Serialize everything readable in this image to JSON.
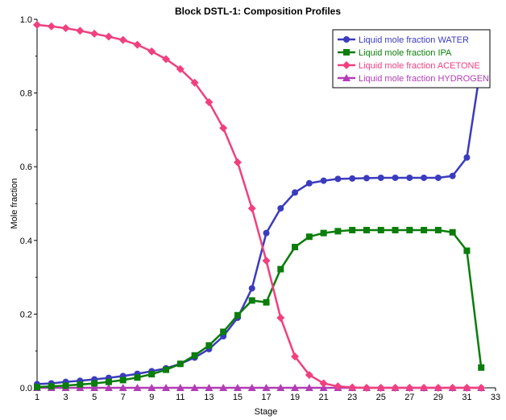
{
  "chart_data": {
    "type": "line",
    "title": "Block DSTL-1: Composition Profiles",
    "xlabel": "Stage",
    "ylabel": "Mole fraction",
    "xlim": [
      1,
      33
    ],
    "ylim": [
      0,
      1.0
    ],
    "xticks": [
      "1",
      "3",
      "5",
      "7",
      "9",
      "11",
      "13",
      "15",
      "17",
      "19",
      "21",
      "23",
      "25",
      "27",
      "29",
      "31",
      "33"
    ],
    "yticks": [
      "0.0",
      "0.2",
      "0.4",
      "0.6",
      "0.8",
      "1.0"
    ],
    "grid": false,
    "legend_position": "top-right",
    "x": [
      1,
      2,
      3,
      4,
      5,
      6,
      7,
      8,
      9,
      10,
      11,
      12,
      13,
      14,
      15,
      16,
      17,
      18,
      19,
      20,
      21,
      22,
      23,
      24,
      25,
      26,
      27,
      28,
      29,
      30,
      31,
      32
    ],
    "series": [
      {
        "name": "Liquid mole fraction WATER",
        "color": "#3b3bbf",
        "marker": "circle",
        "values": [
          0.01,
          0.012,
          0.016,
          0.019,
          0.023,
          0.027,
          0.032,
          0.038,
          0.045,
          0.053,
          0.065,
          0.082,
          0.105,
          0.14,
          0.19,
          0.27,
          0.42,
          0.487,
          0.53,
          0.555,
          0.562,
          0.567,
          0.568,
          0.569,
          0.57,
          0.57,
          0.57,
          0.57,
          0.57,
          0.575,
          0.625,
          0.88
        ]
      },
      {
        "name": "Liquid mole fraction IPA",
        "color": "#0a7d0a",
        "marker": "square",
        "values": [
          0.002,
          0.004,
          0.006,
          0.009,
          0.012,
          0.016,
          0.021,
          0.028,
          0.037,
          0.049,
          0.065,
          0.088,
          0.115,
          0.152,
          0.197,
          0.237,
          0.232,
          0.322,
          0.382,
          0.41,
          0.42,
          0.425,
          0.428,
          0.428,
          0.428,
          0.428,
          0.428,
          0.428,
          0.428,
          0.422,
          0.372,
          0.055
        ]
      },
      {
        "name": "Liquid mole fraction ACETONE",
        "color": "#f0407f",
        "marker": "diamond",
        "values": [
          0.985,
          0.981,
          0.976,
          0.969,
          0.961,
          0.953,
          0.944,
          0.931,
          0.913,
          0.892,
          0.865,
          0.828,
          0.775,
          0.705,
          0.612,
          0.487,
          0.345,
          0.19,
          0.085,
          0.035,
          0.012,
          0.004,
          0.001,
          0.0,
          0.0,
          0.0,
          0.0,
          0.0,
          0.0,
          0.0,
          0.0,
          0.0
        ]
      },
      {
        "name": "Liquid mole fraction HYDROGEN",
        "color": "#b13db5",
        "marker": "triangle",
        "values": [
          0,
          0,
          0,
          0,
          0,
          0,
          0,
          0,
          0,
          0,
          0,
          0,
          0,
          0,
          0,
          0,
          0,
          0,
          0,
          0,
          0,
          0,
          0,
          0,
          0,
          0,
          0,
          0,
          0,
          0,
          0,
          0
        ]
      }
    ]
  }
}
